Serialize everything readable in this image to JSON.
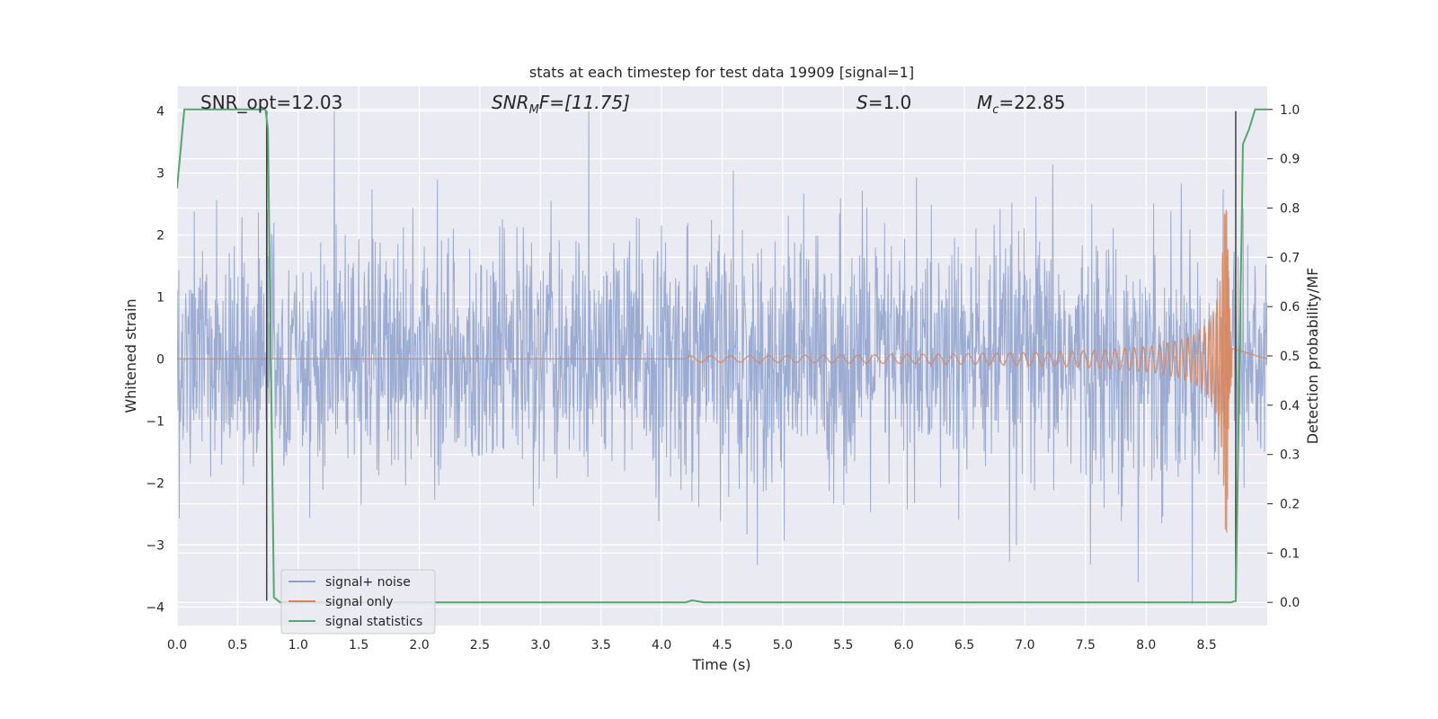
{
  "chart_data": {
    "type": "line",
    "title": "stats at each timestep for test data 19909 [signal=1]",
    "xlabel": "Time (s)",
    "ylabel_left": "Whitened strain",
    "ylabel_right": "Detection probability/MF",
    "xlim": [
      0.0,
      9.0
    ],
    "ylim_left": [
      -4.3,
      4.4
    ],
    "ylim_right": [
      -0.047,
      1.047
    ],
    "x_ticks": [
      "0.0",
      "0.5",
      "1.0",
      "1.5",
      "2.0",
      "2.5",
      "3.0",
      "3.5",
      "4.0",
      "4.5",
      "5.0",
      "5.5",
      "6.0",
      "6.5",
      "7.0",
      "7.5",
      "8.0",
      "8.5"
    ],
    "y_ticks_left": [
      "−4",
      "−3",
      "−2",
      "−1",
      "0",
      "1",
      "2",
      "3",
      "4"
    ],
    "y_ticks_right": [
      "0.0",
      "0.1",
      "0.2",
      "0.3",
      "0.4",
      "0.5",
      "0.6",
      "0.7",
      "0.8",
      "0.9",
      "1.0"
    ],
    "grid": true,
    "legend_position": "lower-left",
    "annotations": {
      "snr_opt": "SNR_opt=12.03",
      "snr_mf_base": "SNR",
      "snr_mf_sub": "M",
      "snr_mf_rest": "F=[11.75]",
      "s_sym": "S",
      "s_val": "=1.0",
      "mc_sym": "M",
      "mc_sub": "c",
      "mc_val": "=22.85"
    },
    "vertical_markers_x": [
      0.74,
      8.74
    ],
    "series": [
      {
        "name": "signal+ noise",
        "color": "#8da0cb",
        "description_axis": "left",
        "noise_envelope": {
          "typical": 1.6,
          "max_pos": 4.0,
          "max_neg": -3.95
        }
      },
      {
        "name": "signal only",
        "color": "#dd8452",
        "axis": "left",
        "chirp": {
          "start": 4.2,
          "merger": 8.65,
          "peak_amplitude": 2.8
        }
      },
      {
        "name": "signal statistics",
        "color": "#55a868",
        "axis": "right",
        "x": [
          0.0,
          0.06,
          0.1,
          0.73,
          0.75,
          0.8,
          0.85,
          4.2,
          4.25,
          4.35,
          8.7,
          8.74,
          8.8,
          8.85,
          8.9,
          9.0
        ],
        "y": [
          0.84,
          1.0,
          1.0,
          1.0,
          0.96,
          0.01,
          0.0,
          0.0,
          0.004,
          0.0,
          0.0,
          0.003,
          0.93,
          0.96,
          1.0,
          1.0
        ]
      }
    ]
  }
}
